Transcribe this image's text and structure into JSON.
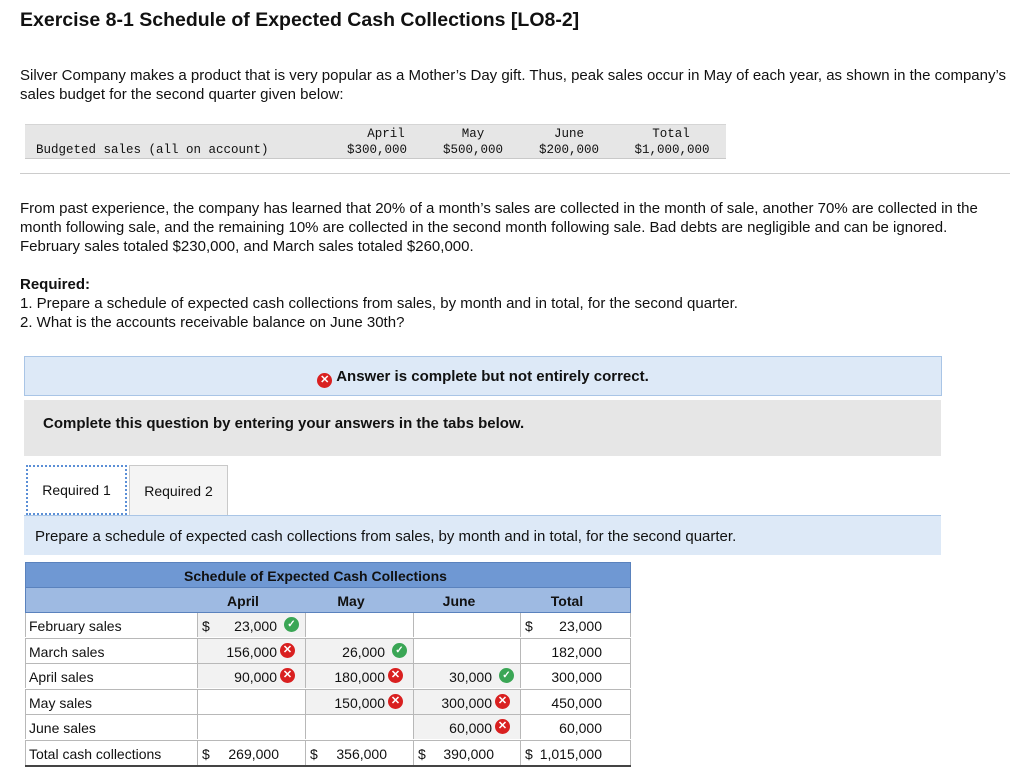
{
  "title": "Exercise 8-1 Schedule of Expected Cash Collections [LO8-2]",
  "intro": "Silver Company makes a product that is very popular as a Mother’s Day gift. Thus, peak sales occur in May of each year, as shown in the company’s sales budget for the second quarter given below:",
  "budget": {
    "row_label": "Budgeted sales (all on account)",
    "headers": [
      "April",
      "May",
      "June",
      "Total"
    ],
    "values": [
      "$300,000",
      "$500,000",
      "$200,000",
      "$1,000,000"
    ]
  },
  "paragraph2": "From past experience, the company has learned that 20% of a month’s sales are collected in the month of sale, another 70% are collected in the month following sale, and the remaining 10% are collected in the second month following sale. Bad debts are negligible and can be ignored. February sales totaled $230,000, and March sales totaled $260,000.",
  "required": {
    "heading": "Required:",
    "items": [
      "1. Prepare a schedule of expected cash collections from sales, by month and in total, for the second quarter.",
      "2. What is the accounts receivable balance on June 30th?"
    ]
  },
  "banner": {
    "text": "Answer is complete but not entirely correct.",
    "icon": "x-circle-icon",
    "color": "#d92020"
  },
  "instruction": "Complete this question by entering your answers in the tabs below.",
  "tabs": [
    {
      "label": "Required 1",
      "active": true
    },
    {
      "label": "Required 2",
      "active": false
    }
  ],
  "tab_prompt": "Prepare a schedule of expected cash collections from sales, by month and in total, for the second quarter.",
  "schedule": {
    "title": "Schedule of Expected Cash Collections",
    "columns": [
      "April",
      "May",
      "June",
      "Total"
    ],
    "rows": [
      {
        "label": "February sales",
        "cells": [
          {
            "value": "23,000",
            "dollar": true,
            "mark": "check"
          },
          {
            "value": ""
          },
          {
            "value": ""
          },
          {
            "value": "23,000",
            "dollar": true
          }
        ]
      },
      {
        "label": "March sales",
        "cells": [
          {
            "value": "156,000",
            "mark": "x"
          },
          {
            "value": "26,000",
            "mark": "check"
          },
          {
            "value": ""
          },
          {
            "value": "182,000"
          }
        ]
      },
      {
        "label": "April sales",
        "cells": [
          {
            "value": "90,000",
            "mark": "x"
          },
          {
            "value": "180,000",
            "mark": "x"
          },
          {
            "value": "30,000",
            "mark": "check"
          },
          {
            "value": "300,000"
          }
        ]
      },
      {
        "label": "May sales",
        "cells": [
          {
            "value": ""
          },
          {
            "value": "150,000",
            "mark": "x"
          },
          {
            "value": "300,000",
            "mark": "x"
          },
          {
            "value": "450,000"
          }
        ]
      },
      {
        "label": "June sales",
        "cells": [
          {
            "value": ""
          },
          {
            "value": ""
          },
          {
            "value": "60,000",
            "mark": "x"
          },
          {
            "value": "60,000"
          }
        ]
      },
      {
        "label": "Total cash collections",
        "cells": [
          {
            "value": "269,000",
            "dollar": true
          },
          {
            "value": "356,000",
            "dollar": true
          },
          {
            "value": "390,000",
            "dollar": true
          },
          {
            "value": "1,015,000",
            "dollar": true
          }
        ]
      }
    ]
  },
  "colors": {
    "correct": "#3aa655",
    "incorrect": "#d92020",
    "header_dark": "#6f98d3",
    "header_light": "#9ebae2"
  }
}
